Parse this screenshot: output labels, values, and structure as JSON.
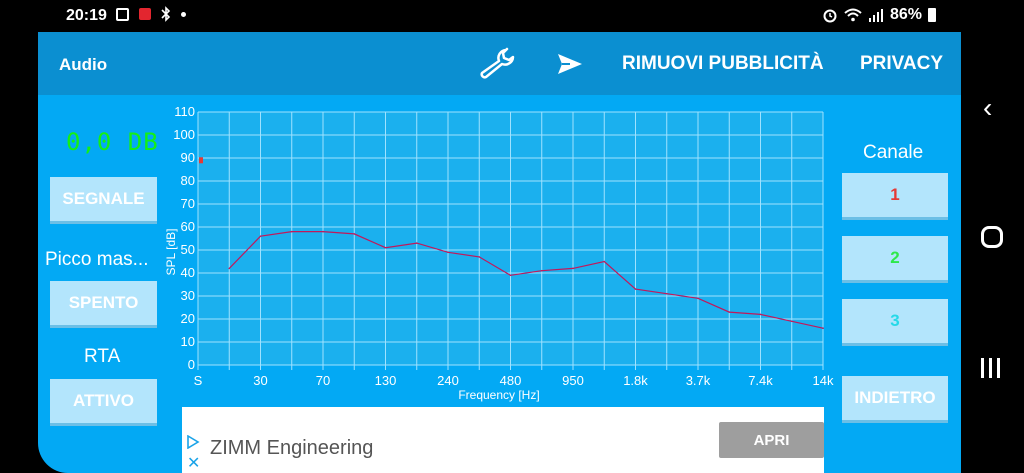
{
  "status_bar": {
    "time": "20:19",
    "battery": "86%"
  },
  "app_bar": {
    "title": "Audio",
    "remove_ads": "RIMUOVI PUBBLICITÀ",
    "privacy": "PRIVACY"
  },
  "left_panel": {
    "level": "0,0 DB",
    "signal_button": "SEGNALE",
    "peak_label": "Picco mas...",
    "peak_button": "SPENTO",
    "rta_label": "RTA",
    "rta_button": "ATTIVO"
  },
  "right_panel": {
    "channel_label": "Canale",
    "channels": [
      {
        "label": "1",
        "color": "#e53935"
      },
      {
        "label": "2",
        "color": "#2ee84a"
      },
      {
        "label": "3",
        "color": "#26d9e8"
      }
    ],
    "back_button": "INDIETRO"
  },
  "ad": {
    "advertiser": "ZIMM Engineering",
    "open_button": "APRI"
  },
  "chart_data": {
    "type": "line",
    "xlabel": "Frequency [Hz]",
    "ylabel": "SPL [dB]",
    "ylim": [
      0,
      110
    ],
    "y_ticks": [
      "0",
      "10",
      "20",
      "30",
      "40",
      "50",
      "60",
      "70",
      "80",
      "90",
      "100",
      "110"
    ],
    "x_ticks": [
      "S",
      "30",
      "70",
      "130",
      "240",
      "480",
      "950",
      "1.8k",
      "3.7k",
      "7.4k",
      "14k"
    ],
    "grid": true,
    "series": [
      {
        "color": "#c2185b",
        "x_index": [
          1,
          2,
          3,
          4,
          5,
          6,
          7,
          8,
          9,
          10,
          11,
          12,
          13,
          14,
          15,
          16,
          17,
          18,
          19,
          20
        ],
        "values": [
          42,
          56,
          58,
          58,
          57,
          51,
          53,
          49,
          47,
          39,
          41,
          42,
          45,
          33,
          31,
          29,
          23,
          22,
          19,
          16
        ]
      }
    ],
    "peak_marker": {
      "x_index": 0,
      "value": 89,
      "color": "#e53935"
    }
  }
}
